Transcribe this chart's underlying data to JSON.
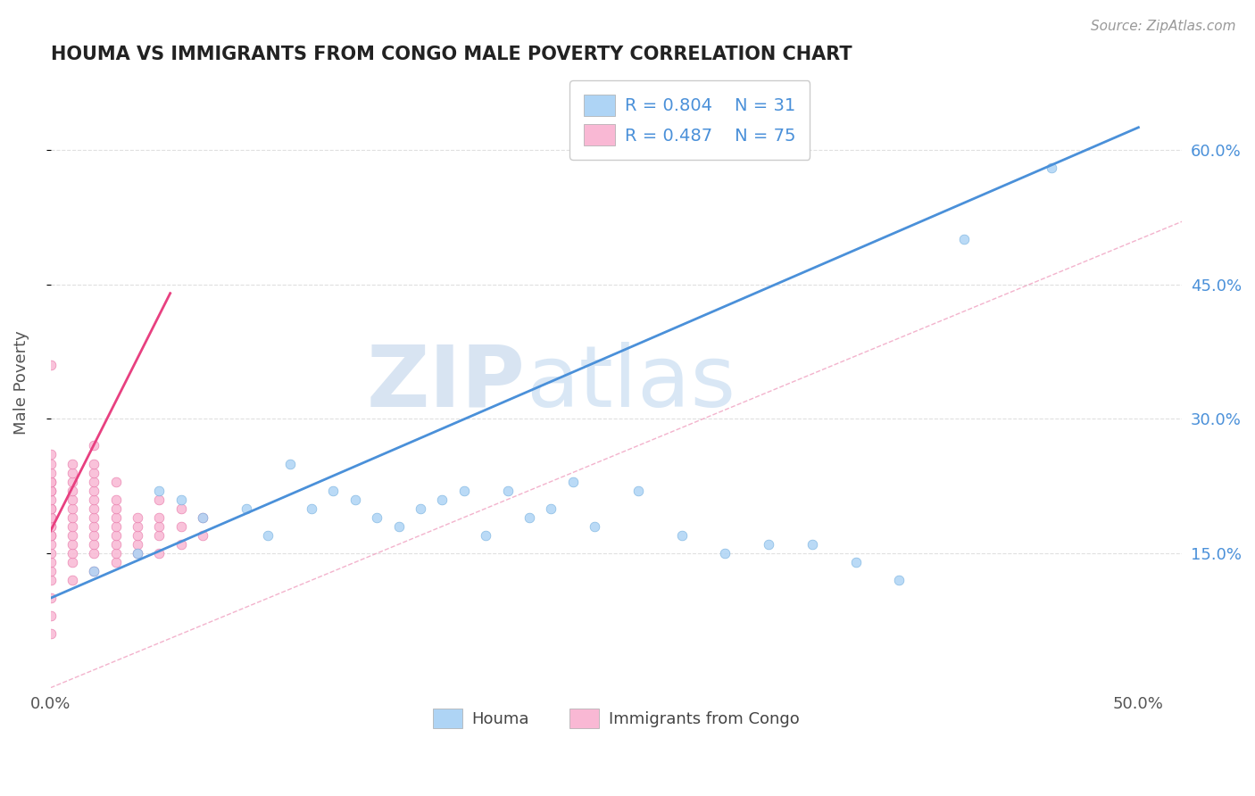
{
  "title": "HOUMA VS IMMIGRANTS FROM CONGO MALE POVERTY CORRELATION CHART",
  "source": "Source: ZipAtlas.com",
  "ylabel": "Male Poverty",
  "xlim": [
    0.0,
    0.52
  ],
  "ylim": [
    0.0,
    0.68
  ],
  "xticks": [
    0.0,
    0.1,
    0.2,
    0.3,
    0.4,
    0.5
  ],
  "xtick_labels": [
    "0.0%",
    "",
    "",
    "",
    "",
    "50.0%"
  ],
  "yticks_right": [
    0.15,
    0.3,
    0.45,
    0.6
  ],
  "ytick_labels_right": [
    "15.0%",
    "30.0%",
    "45.0%",
    "60.0%"
  ],
  "houma_color": "#aed4f5",
  "houma_edge": "#7ab3e0",
  "congo_color": "#f9b8d4",
  "congo_edge": "#e87aaa",
  "regression_blue_color": "#4a90d9",
  "regression_pink_color": "#e84080",
  "legend_label_blue": "Houma",
  "legend_label_pink": "Immigrants from Congo",
  "watermark_zip": "ZIP",
  "watermark_atlas": "atlas",
  "background_color": "#ffffff",
  "grid_color": "#e0e0e0",
  "title_color": "#222222",
  "axis_label_color": "#555555",
  "right_tick_color": "#4a90d9",
  "blue_line_x0": 0.0,
  "blue_line_y0": 0.1,
  "blue_line_x1": 0.5,
  "blue_line_y1": 0.625,
  "pink_line_x0": 0.0,
  "pink_line_y0": 0.175,
  "pink_line_x1": 0.055,
  "pink_line_y1": 0.44,
  "ref_line_color": "#f0a0c0",
  "houma_x": [
    0.02,
    0.04,
    0.05,
    0.06,
    0.07,
    0.09,
    0.1,
    0.11,
    0.12,
    0.13,
    0.14,
    0.15,
    0.16,
    0.17,
    0.18,
    0.19,
    0.2,
    0.21,
    0.22,
    0.23,
    0.24,
    0.25,
    0.27,
    0.29,
    0.31,
    0.33,
    0.35,
    0.37,
    0.39,
    0.42,
    0.46
  ],
  "houma_y": [
    0.13,
    0.15,
    0.22,
    0.21,
    0.19,
    0.2,
    0.17,
    0.25,
    0.2,
    0.22,
    0.21,
    0.19,
    0.18,
    0.2,
    0.21,
    0.22,
    0.17,
    0.22,
    0.19,
    0.2,
    0.23,
    0.18,
    0.22,
    0.17,
    0.15,
    0.16,
    0.16,
    0.14,
    0.12,
    0.5,
    0.58
  ],
  "congo_x": [
    0.0,
    0.0,
    0.0,
    0.0,
    0.0,
    0.0,
    0.0,
    0.0,
    0.0,
    0.0,
    0.0,
    0.0,
    0.0,
    0.0,
    0.0,
    0.0,
    0.0,
    0.0,
    0.0,
    0.0,
    0.0,
    0.0,
    0.0,
    0.0,
    0.0,
    0.01,
    0.01,
    0.01,
    0.01,
    0.01,
    0.01,
    0.01,
    0.01,
    0.01,
    0.01,
    0.01,
    0.01,
    0.01,
    0.02,
    0.02,
    0.02,
    0.02,
    0.02,
    0.02,
    0.02,
    0.02,
    0.02,
    0.02,
    0.02,
    0.02,
    0.02,
    0.03,
    0.03,
    0.03,
    0.03,
    0.03,
    0.03,
    0.03,
    0.03,
    0.03,
    0.04,
    0.04,
    0.04,
    0.04,
    0.04,
    0.05,
    0.05,
    0.05,
    0.05,
    0.05,
    0.06,
    0.06,
    0.06,
    0.07,
    0.07
  ],
  "congo_y": [
    0.06,
    0.08,
    0.1,
    0.12,
    0.13,
    0.14,
    0.15,
    0.16,
    0.17,
    0.17,
    0.18,
    0.18,
    0.19,
    0.19,
    0.2,
    0.2,
    0.21,
    0.22,
    0.22,
    0.23,
    0.23,
    0.24,
    0.25,
    0.26,
    0.36,
    0.12,
    0.14,
    0.15,
    0.16,
    0.17,
    0.18,
    0.19,
    0.2,
    0.21,
    0.22,
    0.23,
    0.24,
    0.25,
    0.13,
    0.15,
    0.16,
    0.17,
    0.18,
    0.19,
    0.2,
    0.21,
    0.22,
    0.23,
    0.24,
    0.25,
    0.27,
    0.14,
    0.15,
    0.16,
    0.17,
    0.18,
    0.19,
    0.2,
    0.21,
    0.23,
    0.15,
    0.16,
    0.17,
    0.18,
    0.19,
    0.15,
    0.17,
    0.18,
    0.19,
    0.21,
    0.16,
    0.18,
    0.2,
    0.17,
    0.19
  ]
}
